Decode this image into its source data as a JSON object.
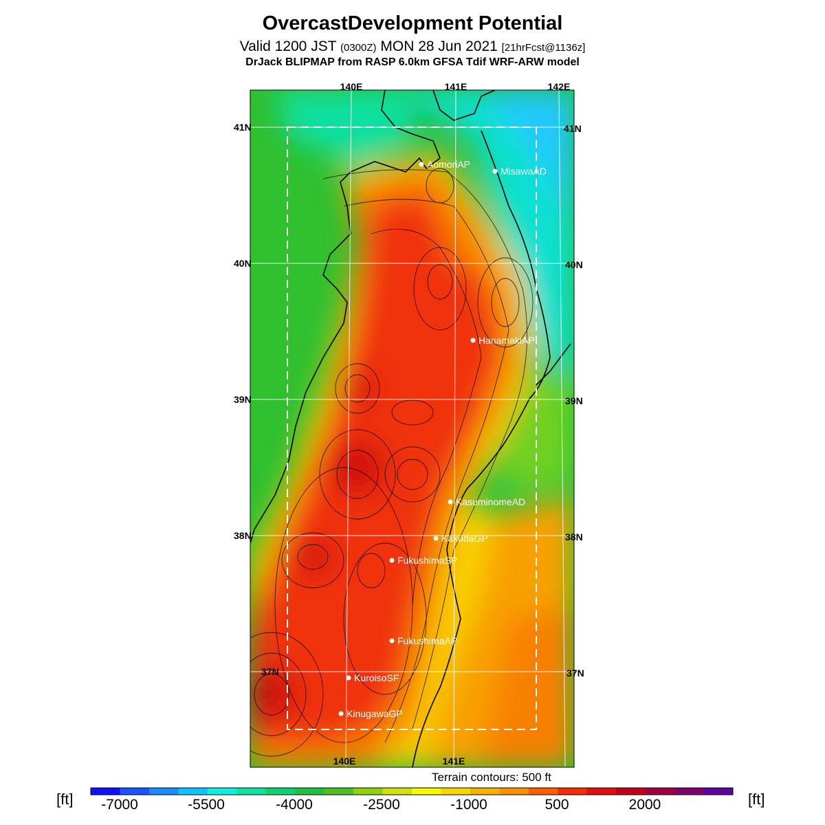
{
  "header": {
    "title": "OvercastDevelopment Potential",
    "valid_prefix": "Valid 1200 JST",
    "valid_z": "(0300Z)",
    "valid_date": "MON 28 Jun 2021",
    "forecast": "[21hrFcst@1136z]",
    "model": "DrJack BLIPMAP from RASP 6.0km GFSA Tdif WRF-ARW model"
  },
  "map": {
    "lon_labels_top": [
      "140E",
      "141E",
      "142E"
    ],
    "lon_labels_bottom": [
      "140E",
      "141E"
    ],
    "lat_labels": [
      "41N",
      "40N",
      "39N",
      "38N",
      "37N"
    ],
    "airports": [
      {
        "name": "AomoriAP"
      },
      {
        "name": "MisawaAD"
      },
      {
        "name": "HanamakiAP"
      },
      {
        "name": "KasuminomeAD"
      },
      {
        "name": "KakudaGP"
      },
      {
        "name": "FukushimaSP"
      },
      {
        "name": "FukushimaAP"
      },
      {
        "name": "KuroisoSF"
      },
      {
        "name": "KinugawaGP"
      }
    ],
    "terrain_note": "Terrain contours: 500 ft"
  },
  "colorbar": {
    "unit": "[ft]",
    "tick_labels": [
      "-7000",
      "-5500",
      "-4000",
      "-2500",
      "-1000",
      "500",
      "2000"
    ],
    "colors": [
      "#1010ff",
      "#1a55ff",
      "#1a8cff",
      "#10c0ff",
      "#10f0e0",
      "#10e0a0",
      "#10d070",
      "#20c040",
      "#50c020",
      "#90d010",
      "#d0e010",
      "#f8f800",
      "#f8d800",
      "#f8b000",
      "#f89000",
      "#f86000",
      "#f03000",
      "#e01010",
      "#c00020",
      "#a00040",
      "#800070",
      "#6000a0"
    ]
  },
  "colors": {
    "sea_cyan": "#10e8e0",
    "sea_green": "#20c040",
    "land_red": "#f03010",
    "land_orange": "#f89000",
    "land_yellow": "#f8e000"
  }
}
